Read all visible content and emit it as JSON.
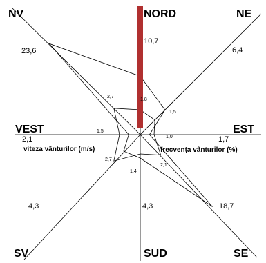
{
  "chart_data": {
    "type": "radar",
    "directions": [
      "NORD",
      "NE",
      "EST",
      "SE",
      "SUD",
      "SV",
      "VEST",
      "NV"
    ],
    "series": [
      {
        "name": "frecvența vânturilor (%)",
        "values": [
          10.7,
          6.4,
          1.7,
          18.7,
          4.3,
          4.3,
          2.1,
          23.6
        ]
      },
      {
        "name": "viteza vânturilor (m/s)",
        "values": [
          1.8,
          1.5,
          1.0,
          2.1,
          1.4,
          2.7,
          1.5,
          2.7
        ]
      }
    ],
    "freq_labels": [
      "10,7",
      "6,4",
      "1,7",
      "18,7",
      "4,3",
      "4,3",
      "2,1",
      "23,6"
    ],
    "speed_labels": [
      "1,8",
      "1,5",
      "1,0",
      "2,1",
      "1,4",
      "2,7",
      "1,5",
      "2,7"
    ],
    "colors": {
      "highlight": "#b03030",
      "lines": "#000000"
    }
  }
}
